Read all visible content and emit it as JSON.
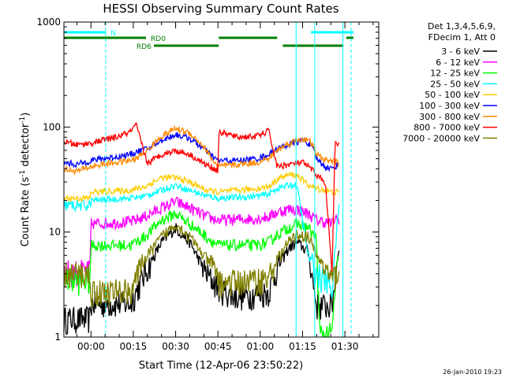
{
  "chart_data": {
    "type": "line",
    "title": "HESSI Observing Summary Count Rates",
    "xlabel": "Start Time (12-Apr-06 23:50:22)",
    "ylabel_main": "Count Rate (s",
    "ylabel_sup1": "-1",
    "ylabel_mid": " detector",
    "ylabel_sup2": "-1",
    "ylabel_end": ")",
    "y_scale": "log",
    "ylim": [
      1,
      1000
    ],
    "xlim_minutes": [
      -9.6,
      102
    ],
    "x_ticks": [
      {
        "m": 0,
        "label": "00:00"
      },
      {
        "m": 15,
        "label": "00:15"
      },
      {
        "m": 30,
        "label": "00:30"
      },
      {
        "m": 45,
        "label": "00:45"
      },
      {
        "m": 60,
        "label": "01:00"
      },
      {
        "m": 75,
        "label": "01:15"
      },
      {
        "m": 90,
        "label": "01:30"
      }
    ],
    "y_ticks": [
      {
        "v": 1,
        "label": "1"
      },
      {
        "v": 10,
        "label": "10"
      },
      {
        "v": 100,
        "label": "100"
      },
      {
        "v": 1000,
        "label": "1000"
      }
    ],
    "legend_header": [
      "Det 1,3,4,5,6,9,",
      "FDecim 1, Att 0"
    ],
    "series": [
      {
        "name": "3 - 6 keV",
        "color": "#000000",
        "x": [
          -9.6,
          -0.4,
          0,
          14,
          19,
          25,
          30,
          35,
          41,
          45,
          50,
          55,
          59,
          63,
          66,
          70,
          73,
          77,
          80,
          83,
          85.5,
          88
        ],
        "y": [
          1.5,
          1.5,
          2.1,
          2.1,
          4,
          8,
          11,
          8,
          4,
          3,
          2.5,
          2.5,
          2.6,
          2.7,
          4.5,
          7,
          8,
          6.5,
          2,
          2,
          2,
          8
        ]
      },
      {
        "name": "6 - 12 keV",
        "color": "#ff00ff",
        "x": [
          -9.6,
          -0.4,
          0,
          14,
          19,
          25,
          30,
          35,
          41,
          45,
          45.3,
          59,
          63,
          66,
          70,
          73,
          77,
          80,
          83,
          85.5,
          86.5,
          88
        ],
        "y": [
          4.2,
          4.2,
          12,
          12.5,
          14,
          17,
          19.5,
          17,
          14,
          13,
          13,
          13.5,
          14,
          15.5,
          16.5,
          16.5,
          15,
          13,
          12.5,
          12,
          13.5,
          13.5
        ]
      },
      {
        "name": "12 - 25 keV",
        "color": "#00ff00",
        "x": [
          -9.6,
          -0.4,
          0,
          14,
          19,
          25,
          30,
          35,
          41,
          45,
          45.3,
          59,
          63,
          66,
          70,
          73,
          77,
          80,
          81,
          83,
          85.5,
          87,
          88
        ],
        "y": [
          3.5,
          3.5,
          7.5,
          7.5,
          9,
          13,
          15,
          12,
          9,
          7.5,
          7.5,
          7.5,
          8,
          9.5,
          11,
          12,
          11,
          8.5,
          1.05,
          1.05,
          1.05,
          4.8,
          4.8
        ]
      },
      {
        "name": "25 - 50 keV",
        "color": "#00ffff",
        "x": [
          -9.6,
          -0.4,
          0,
          14,
          19,
          25,
          30,
          35,
          41,
          45,
          45.3,
          59,
          63,
          66,
          70,
          73,
          77,
          80,
          83,
          85.5,
          88
        ],
        "y": [
          18,
          18,
          20,
          21,
          22,
          25,
          28,
          25,
          22,
          21,
          21,
          22,
          23,
          26,
          28,
          28,
          6,
          4,
          3.5,
          3,
          20
        ]
      },
      {
        "name": "50 - 100 keV",
        "color": "#ffcc00",
        "x": [
          -9.6,
          -0.4,
          0,
          14,
          19,
          25,
          30,
          35,
          41,
          45,
          45.3,
          59,
          63,
          66,
          70,
          73,
          77,
          80,
          83,
          85.5,
          88
        ],
        "y": [
          21,
          21,
          24,
          25,
          27,
          33,
          33,
          30,
          25,
          24,
          24,
          26,
          27,
          32,
          35,
          35,
          28,
          26,
          25,
          24,
          24
        ]
      },
      {
        "name": "100 - 300 keV",
        "color": "#0000ff",
        "x": [
          -9.6,
          -5,
          0,
          4,
          9,
          14,
          16,
          20,
          25,
          30,
          35,
          40,
          44,
          45.3,
          52,
          59,
          63,
          66,
          70,
          75,
          78,
          80,
          83,
          85.5,
          88
        ],
        "y": [
          46,
          44,
          48,
          50,
          52,
          55,
          58,
          62,
          75,
          85,
          78,
          62,
          50,
          48,
          48,
          50,
          55,
          62,
          68,
          75,
          68,
          50,
          42,
          40,
          45
        ]
      },
      {
        "name": "300 - 800 keV",
        "color": "#ff8800",
        "x": [
          -9.6,
          -5,
          0,
          4,
          9,
          14,
          16,
          20,
          25,
          30,
          35,
          40,
          44,
          45.3,
          52,
          59,
          63,
          66,
          70,
          75,
          78,
          80,
          83,
          85.5,
          88
        ],
        "y": [
          40,
          38,
          42,
          44,
          46,
          48,
          50,
          60,
          82,
          97,
          88,
          65,
          45,
          42,
          44,
          46,
          50,
          60,
          70,
          78,
          72,
          55,
          48,
          48,
          45
        ]
      },
      {
        "name": "800 - 7000 keV",
        "color": "#ff0000",
        "x": [
          -9.6,
          -5,
          0,
          4,
          9,
          14,
          16,
          20,
          25,
          30,
          35,
          40,
          44,
          45,
          45.3,
          52,
          59,
          63,
          66,
          70,
          75,
          78,
          80,
          83,
          85.5,
          86.5,
          88
        ],
        "y": [
          72,
          68,
          70,
          75,
          80,
          90,
          105,
          45,
          55,
          60,
          55,
          45,
          40,
          38,
          90,
          80,
          82,
          92,
          42,
          44,
          46,
          40,
          35,
          30,
          4,
          68,
          68
        ]
      },
      {
        "name": "7000 - 20000 keV",
        "color": "#808000",
        "x": [
          -9.6,
          -0.4,
          0,
          14,
          19,
          25,
          30,
          35,
          41,
          45,
          45.3,
          59,
          63,
          66,
          70,
          73,
          77,
          80,
          83,
          85.5,
          88
        ],
        "y": [
          4,
          4,
          2.7,
          2.8,
          5.5,
          9,
          12,
          9,
          5.5,
          4,
          3.3,
          3.5,
          3.7,
          5.5,
          8,
          9.5,
          9,
          6,
          4.5,
          3.5,
          4.5
        ]
      }
    ],
    "segments": [
      {
        "label": "N",
        "color": "#00ffff",
        "from": -9.6,
        "to": 5.3,
        "row": "N"
      },
      {
        "label": "",
        "color": "#00ffff",
        "from": 78,
        "to": 93,
        "row": "N"
      },
      {
        "label": "RD0",
        "color": "#008000",
        "from": -9.6,
        "to": 19.5,
        "row": "RD0"
      },
      {
        "label": "",
        "color": "#008000",
        "from": 45.3,
        "to": 66,
        "row": "RD0"
      },
      {
        "label": "",
        "color": "#008000",
        "from": 90.5,
        "to": 93,
        "row": "RD0"
      },
      {
        "label": "RD6",
        "color": "#008000",
        "from": 22.3,
        "to": 45.3,
        "row": "RD6"
      },
      {
        "label": "",
        "color": "#008000",
        "from": 68,
        "to": 89.5,
        "row": "RD6"
      }
    ],
    "vlines": [
      {
        "m": 5.2,
        "color": "#00ffff",
        "dashed": true
      },
      {
        "m": 72.7,
        "color": "#00ffff",
        "dashed": false
      },
      {
        "m": 79.3,
        "color": "#00ffff",
        "dashed": false
      },
      {
        "m": 92.2,
        "color": "#00ffff",
        "dashed": true
      },
      {
        "m": 89.3,
        "color": "#00ffff",
        "dashed": false
      }
    ],
    "grid": false,
    "legend_position": "right",
    "timestamp": "26-Jan-2010 19:23"
  }
}
